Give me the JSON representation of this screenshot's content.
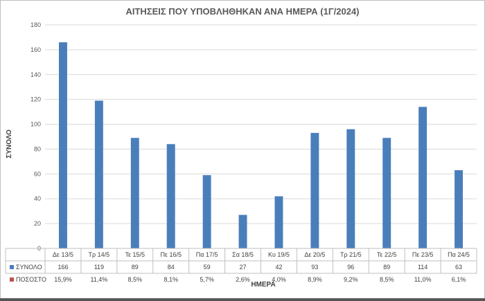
{
  "chart_data": {
    "type": "bar",
    "title": "ΑΙΤΗΣΕΙΣ ΠΟΥ ΥΠΟΒΛΗΘΗΚΑΝ ΑΝΑ ΗΜΕΡΑ (1Γ/2024)",
    "xlabel": "ΗΜΕΡΑ",
    "ylabel": "ΣΥΝΟΛΟ",
    "ylim": [
      0,
      180
    ],
    "yticks": [
      0,
      20,
      40,
      60,
      80,
      100,
      120,
      140,
      160,
      180
    ],
    "grid": true,
    "categories": [
      "Δε 13/5",
      "Τρ 14/5",
      "Τε 15/5",
      "Πε 16/5",
      "Πα 17/5",
      "Σα 18/5",
      "Κυ 19/5",
      "Δε 20/5",
      "Τρ 21/5",
      "Τε 22/5",
      "Πε 23/5",
      "Πα 24/5"
    ],
    "series": [
      {
        "name": "ΣΥΝΟΛΟ",
        "color": "#4a7ebb",
        "values": [
          166,
          119,
          89,
          84,
          59,
          27,
          42,
          93,
          96,
          89,
          114,
          63
        ]
      },
      {
        "name": "ΠΟΣΟΣΤΟ",
        "color": "#c0504d",
        "labels": [
          "15,9%",
          "11,4%",
          "8,5%",
          "8,1%",
          "5,7%",
          "2,6%",
          "4,0%",
          "8,9%",
          "9,2%",
          "8,5%",
          "11,0%",
          "6,1%"
        ]
      }
    ]
  }
}
